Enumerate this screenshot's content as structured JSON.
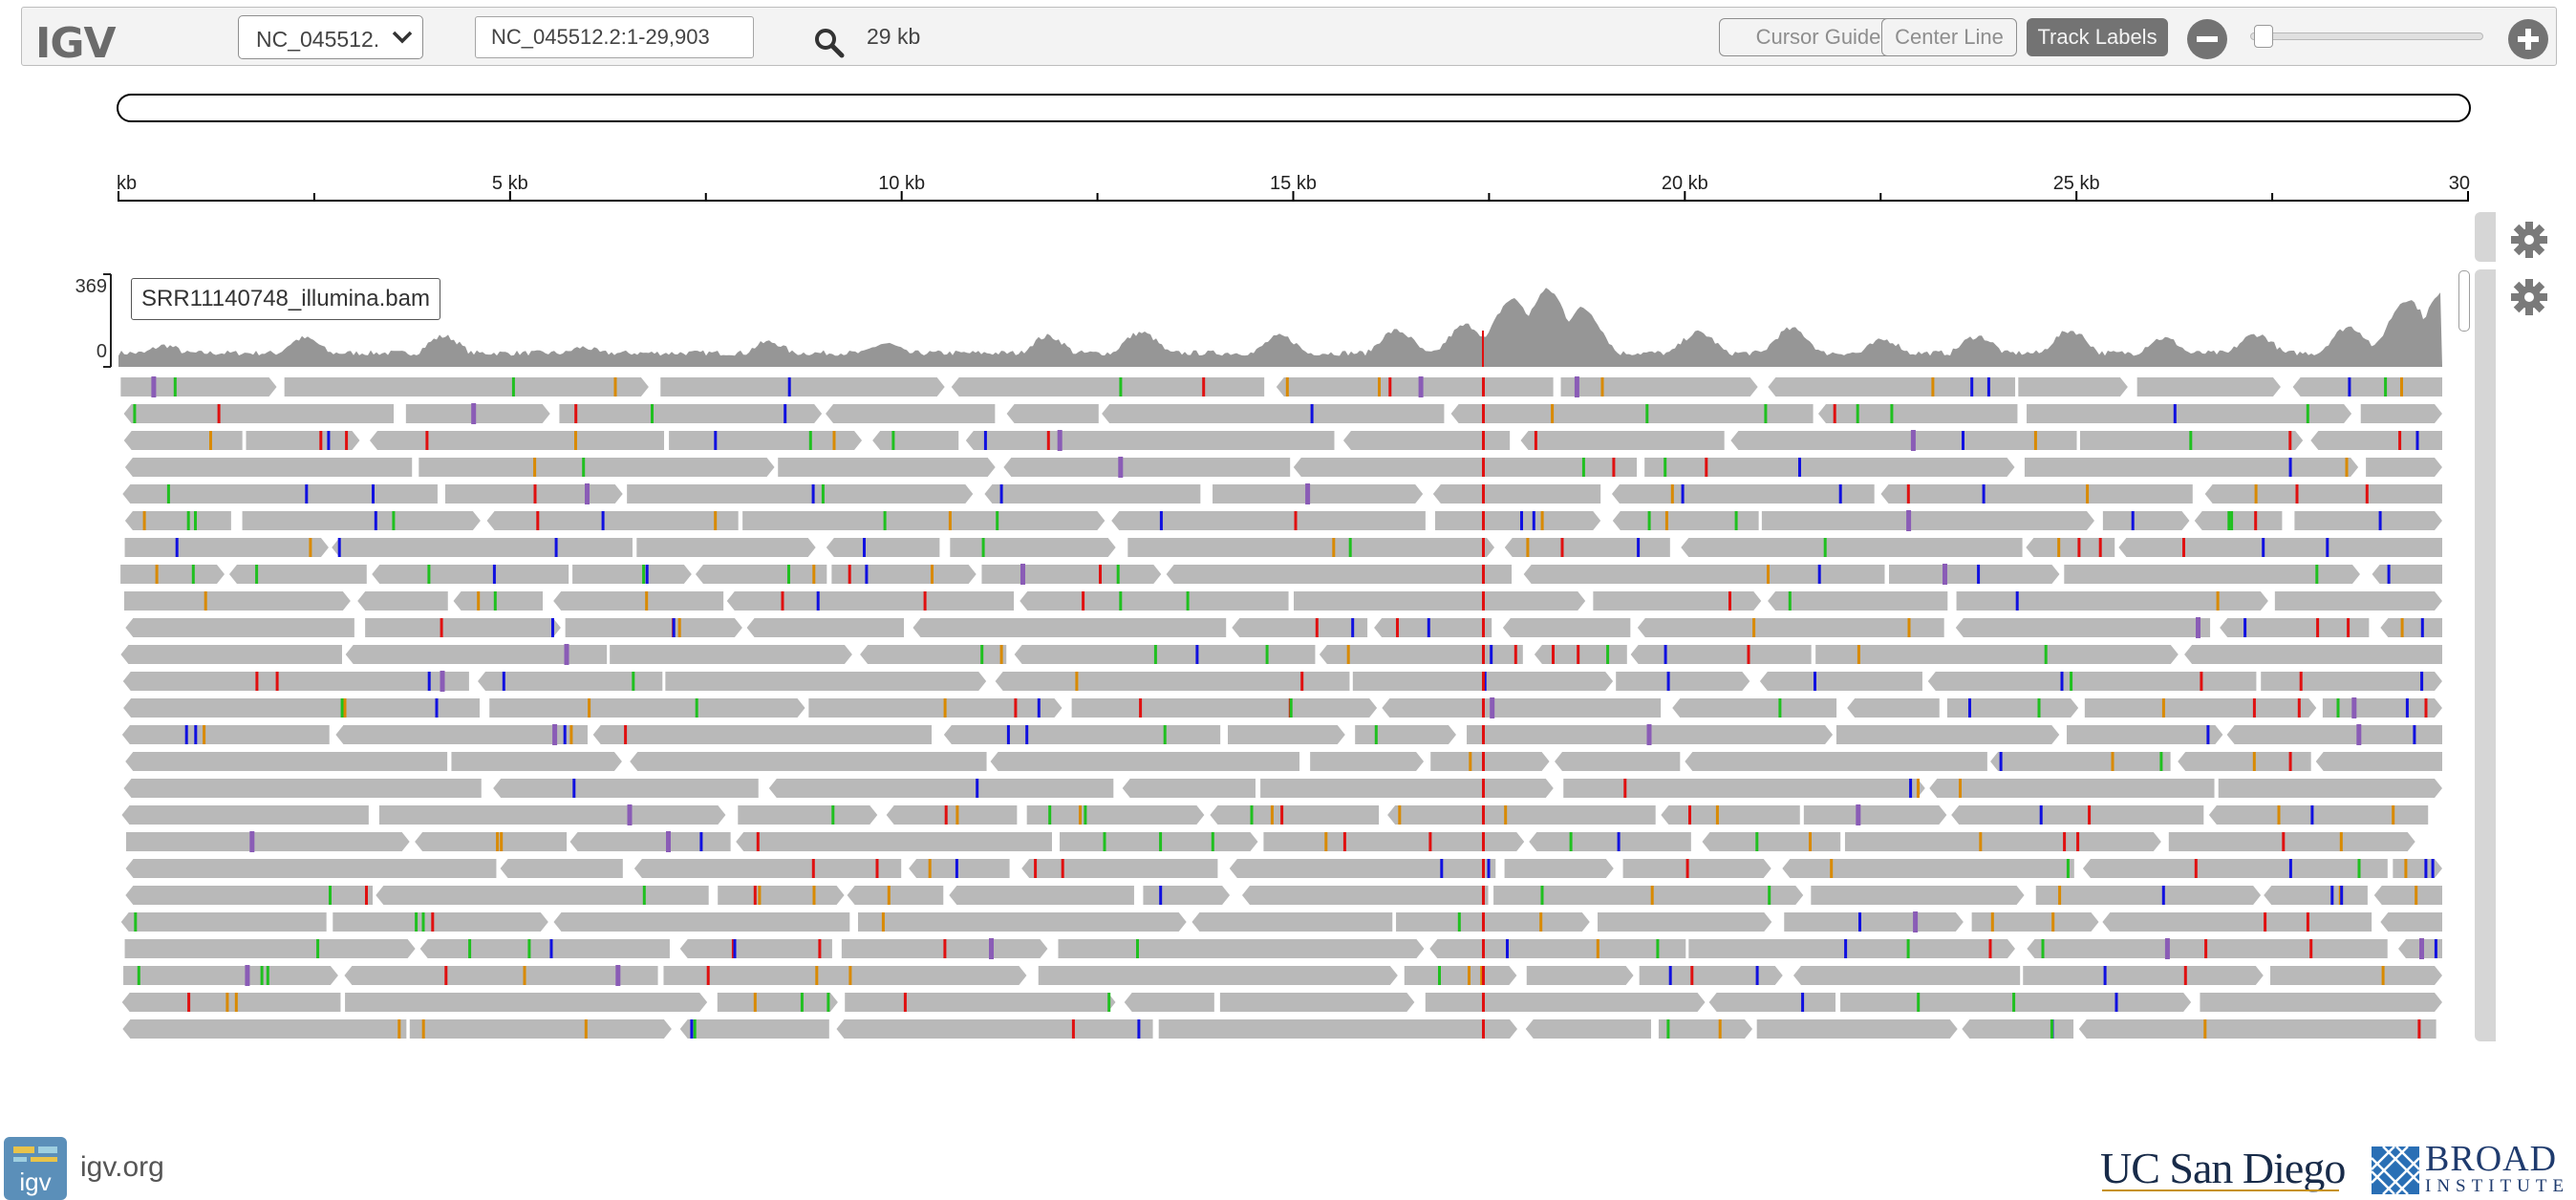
{
  "navbar": {
    "logo": "IGV",
    "chromosome": "NC_045512.",
    "locus": "NC_045512.2:1-29,903",
    "window_size": "29 kb",
    "buttons": {
      "cursor_guide": "Cursor Guide",
      "center_line": "Center Line",
      "track_labels": "Track Labels"
    }
  },
  "ruler": {
    "ticks": [
      "kb",
      "5 kb",
      "10 kb",
      "15 kb",
      "20 kb",
      "25 kb",
      "30"
    ]
  },
  "coverage_track": {
    "name": "SRR11140748_illumina.bam",
    "range_max": "369",
    "range_min": "0"
  },
  "footer": {
    "link_text": "igv.org",
    "icon_text": "igv",
    "ucsd": "UC San Diego",
    "broad_line1": "BROAD",
    "broad_line2": "INSTITUTE"
  },
  "colors": {
    "coverage": "#969696",
    "read": "#b9b9b9",
    "mismatch_A": "#20c020",
    "mismatch_C": "#1010e0",
    "mismatch_G": "#d98a00",
    "mismatch_T": "#e01010",
    "insertion": "#8a5cb6"
  }
}
